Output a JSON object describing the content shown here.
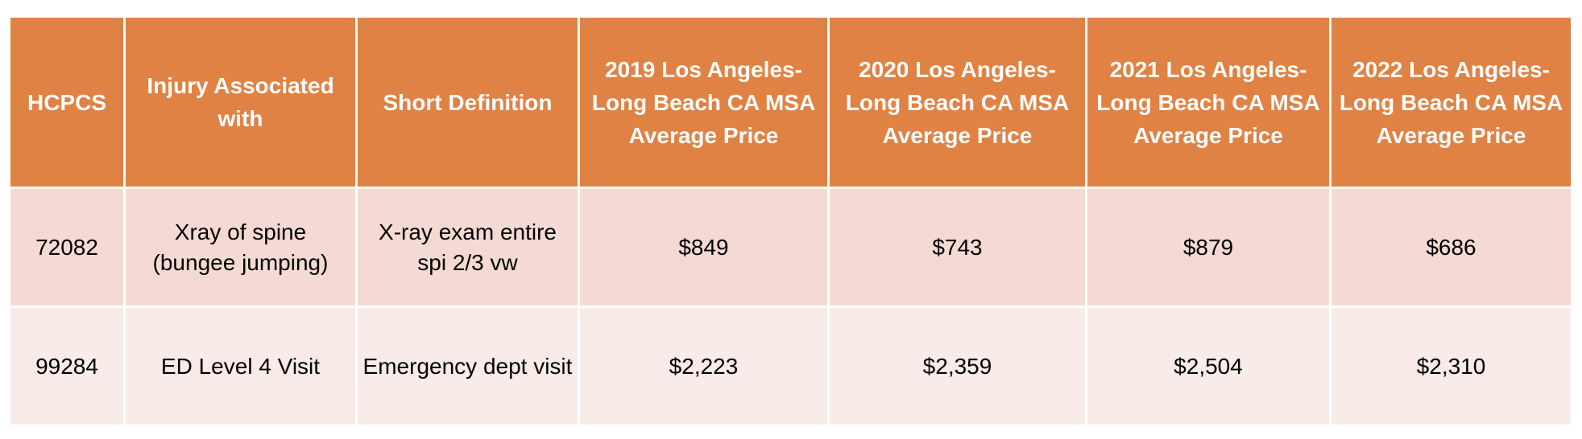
{
  "table": {
    "headers": [
      "HCPCS",
      "Injury Associated with",
      "Short Definition",
      "2019 Los Angeles-Long Beach CA MSA Average Price",
      "2020 Los Angeles-Long Beach CA MSA Average Price",
      "2021 Los Angeles-Long Beach CA MSA Average Price",
      "2022 Los Angeles-Long Beach CA MSA Average Price"
    ],
    "rows": [
      [
        "72082",
        "Xray of spine (bungee jumping)",
        "X-ray exam entire spi 2/3 vw",
        "$849",
        "$743",
        "$879",
        "$686"
      ],
      [
        "99284",
        "ED Level 4 Visit",
        "Emergency dept visit",
        "$2,223",
        "$2,359",
        "$2,504",
        "$2,310"
      ]
    ]
  }
}
